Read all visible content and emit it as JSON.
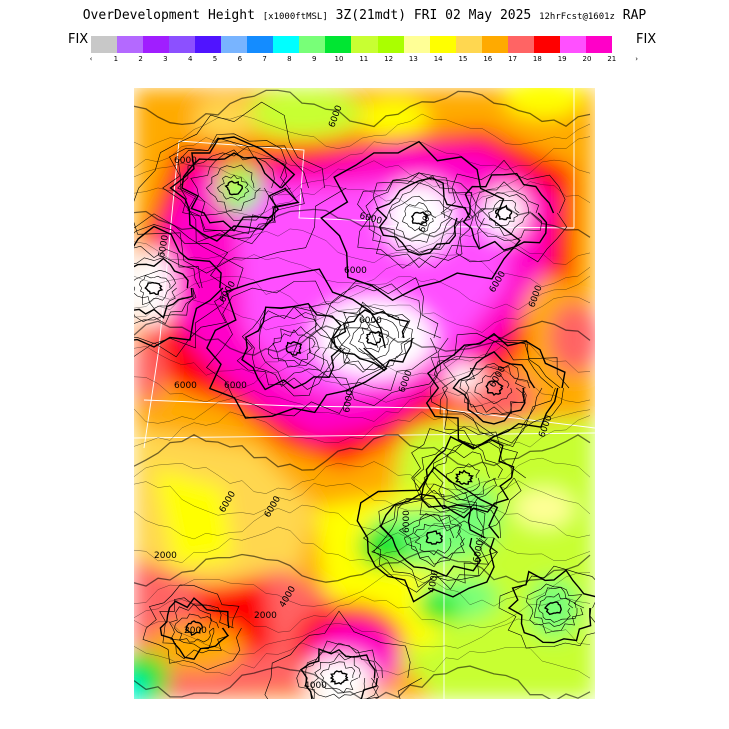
{
  "header": {
    "title_main": "OverDevelopment Height",
    "title_units": "[x1000ftMSL]",
    "title_time": "3Z(21mdt) FRI 02 May 2025",
    "title_fcst": "12hrFcst@1601z",
    "title_model": "RAP",
    "fix_left": "FIX",
    "fix_right": "FIX"
  },
  "legend": {
    "colors": [
      "#c8c8c8",
      "#b469ff",
      "#a01eff",
      "#8c50ff",
      "#5014ff",
      "#78b4ff",
      "#148cff",
      "#00ffff",
      "#78ff78",
      "#00e632",
      "#c8ff32",
      "#aaff00",
      "#ffff96",
      "#ffff00",
      "#ffd750",
      "#ffaa00",
      "#ff6464",
      "#ff0000",
      "#ff50ff",
      "#ff00c8"
    ],
    "tick_labels": [
      "‹",
      "1",
      "2",
      "3",
      "4",
      "5",
      "6",
      "7",
      "8",
      "9",
      "10",
      "11",
      "12",
      "13",
      "14",
      "15",
      "16",
      "17",
      "18",
      "19",
      "20",
      "21",
      "›"
    ]
  },
  "map": {
    "contour_labels": [
      "6000",
      "6000",
      "6000",
      "6000",
      "6000",
      "6000",
      "6000",
      "6000",
      "6000",
      "6000",
      "6000",
      "6000",
      "6000",
      "6000",
      "6000",
      "6000",
      "6000",
      "6000",
      "6000",
      "6000",
      "2000",
      "2000",
      "2000",
      "4000",
      "4000",
      "4000"
    ]
  }
}
